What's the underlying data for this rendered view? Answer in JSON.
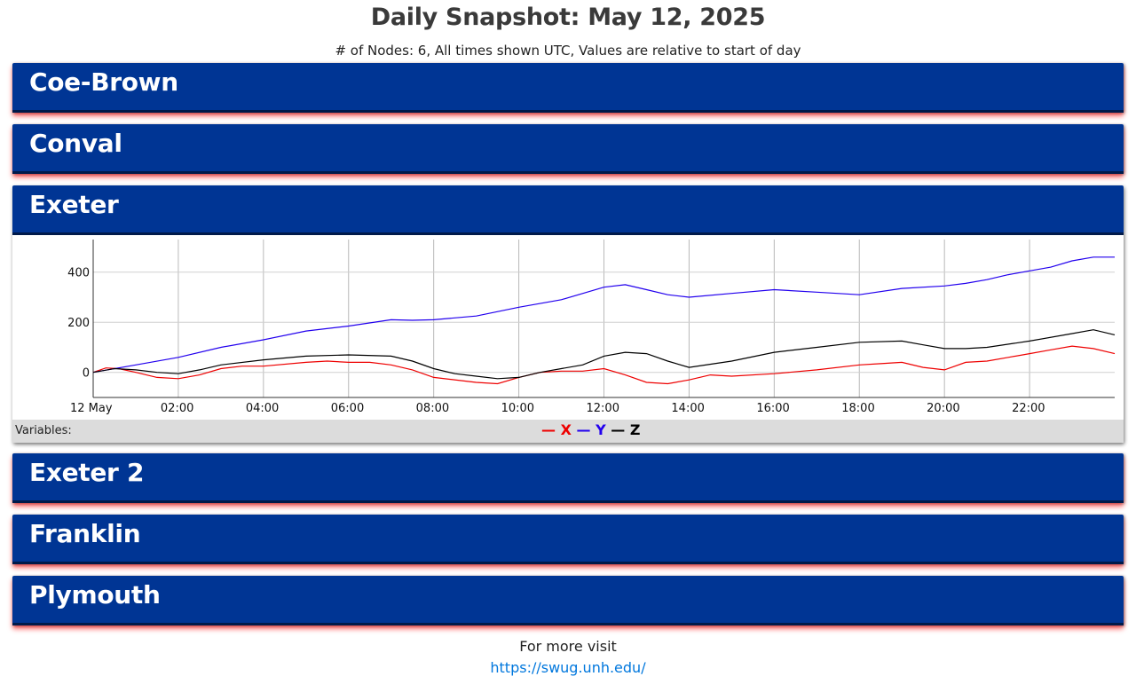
{
  "page": {
    "title": "Daily Snapshot: May 12, 2025",
    "subtitle": "# of Nodes: 6, All times shown UTC, Values are relative to start of day"
  },
  "colors": {
    "header_bg": "#003594",
    "x_series": "#ee0000",
    "y_series": "#2200ee",
    "z_series": "#000000",
    "link": "#0077dd"
  },
  "nodes": [
    {
      "name": "Coe-Brown",
      "expanded": false
    },
    {
      "name": "Conval",
      "expanded": false
    },
    {
      "name": "Exeter",
      "expanded": true
    },
    {
      "name": "Exeter 2",
      "expanded": false
    },
    {
      "name": "Franklin",
      "expanded": false
    },
    {
      "name": "Plymouth",
      "expanded": false
    }
  ],
  "legend": {
    "label": "Variables:",
    "items": [
      {
        "dash": "—",
        "name": "X",
        "color": "#ee0000"
      },
      {
        "dash": "—",
        "name": "Y",
        "color": "#2200ee"
      },
      {
        "dash": "—",
        "name": "Z",
        "color": "#000000"
      }
    ]
  },
  "chart_data": {
    "type": "line",
    "title": "",
    "xlabel": "",
    "ylabel": "",
    "x_unit": "hours UTC",
    "xlim": [
      0,
      24
    ],
    "ylim": [
      -100,
      530
    ],
    "grid": true,
    "legend_position": "bottom-center",
    "x_tick_labels": [
      "12 May",
      "02:00",
      "04:00",
      "06:00",
      "08:00",
      "10:00",
      "12:00",
      "14:00",
      "16:00",
      "18:00",
      "20:00",
      "22:00"
    ],
    "y_tick_labels": [
      "0",
      "200",
      "400"
    ],
    "series": [
      {
        "name": "X",
        "x": [
          0,
          0.3,
          0.6,
          1.0,
          1.5,
          2.0,
          2.5,
          3.0,
          3.5,
          4.0,
          5.0,
          5.5,
          6.0,
          6.5,
          7.0,
          7.5,
          8.0,
          9.0,
          9.5,
          10.0,
          10.5,
          11.0,
          11.5,
          12.0,
          12.5,
          13.0,
          13.5,
          14.0,
          14.5,
          15.0,
          16.0,
          17.0,
          18.0,
          18.5,
          19.0,
          19.5,
          20.0,
          20.5,
          21.0,
          21.5,
          22.0,
          22.5,
          23.0,
          23.5,
          24.0
        ],
        "values": [
          0,
          18,
          15,
          0,
          -20,
          -25,
          -10,
          15,
          25,
          25,
          40,
          45,
          40,
          40,
          30,
          10,
          -20,
          -40,
          -45,
          -20,
          0,
          5,
          5,
          15,
          -10,
          -40,
          -45,
          -30,
          -10,
          -15,
          -5,
          10,
          30,
          35,
          40,
          20,
          10,
          40,
          45,
          60,
          75,
          90,
          105,
          95,
          75
        ]
      },
      {
        "name": "Y",
        "x": [
          0,
          1.0,
          2.0,
          3.0,
          4.0,
          5.0,
          6.0,
          7.0,
          7.5,
          8.0,
          9.0,
          10.0,
          11.0,
          12.0,
          12.5,
          13.0,
          13.5,
          14.0,
          15.0,
          16.0,
          17.0,
          18.0,
          19.0,
          20.0,
          20.5,
          21.0,
          21.5,
          22.0,
          22.5,
          23.0,
          23.5,
          24.0
        ],
        "values": [
          0,
          30,
          60,
          100,
          130,
          165,
          185,
          210,
          208,
          210,
          225,
          260,
          290,
          340,
          350,
          330,
          310,
          300,
          315,
          330,
          320,
          310,
          335,
          345,
          355,
          370,
          390,
          405,
          420,
          445,
          460,
          460
        ]
      },
      {
        "name": "Z",
        "x": [
          0,
          0.5,
          1.0,
          1.5,
          2.0,
          2.5,
          3.0,
          4.0,
          5.0,
          6.0,
          7.0,
          7.5,
          8.0,
          8.5,
          9.0,
          9.5,
          10.0,
          10.5,
          11.0,
          11.5,
          12.0,
          12.5,
          13.0,
          13.5,
          14.0,
          15.0,
          16.0,
          17.0,
          18.0,
          19.0,
          19.5,
          20.0,
          20.5,
          21.0,
          22.0,
          23.0,
          23.5,
          24.0
        ],
        "values": [
          0,
          15,
          10,
          0,
          -5,
          10,
          30,
          50,
          65,
          70,
          65,
          45,
          15,
          -5,
          -15,
          -25,
          -20,
          0,
          15,
          30,
          65,
          80,
          75,
          45,
          20,
          45,
          80,
          100,
          120,
          125,
          110,
          95,
          95,
          100,
          125,
          155,
          170,
          150
        ]
      }
    ]
  },
  "footer": {
    "text": "For more visit",
    "link": "https://swug.unh.edu/"
  }
}
